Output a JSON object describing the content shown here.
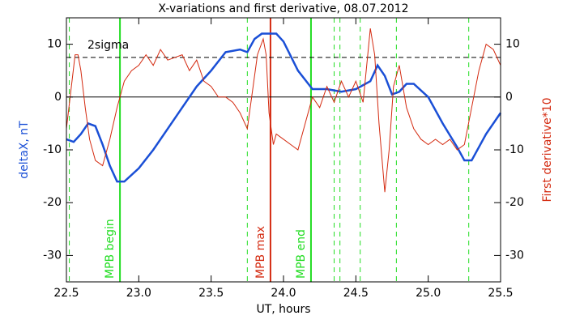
{
  "chart_data": {
    "type": "line",
    "title": "X-variations and first derivative, 08.07.2012",
    "xlabel": "UT, hours",
    "ylabel": "deltaX, nT",
    "y2label": "First derivative*10",
    "xlim": [
      22.5,
      25.5
    ],
    "ylim": [
      -35,
      15
    ],
    "y2lim": [
      -35,
      15
    ],
    "xticks": [
      {
        "value": 22.5,
        "label": "22.5"
      },
      {
        "value": 23,
        "label": "23.0"
      },
      {
        "value": 23.5,
        "label": "23.5"
      },
      {
        "value": 24,
        "label": "24.0"
      },
      {
        "value": 24.5,
        "label": "24.5"
      },
      {
        "value": 25,
        "label": "25.0"
      },
      {
        "value": 25.5,
        "label": "25.5"
      }
    ],
    "yticks": [
      -30,
      -20,
      -10,
      0,
      10
    ],
    "y2ticks": [
      -30,
      -20,
      -10,
      0,
      10
    ],
    "series": [
      {
        "name": "deltaX, nT",
        "color": "#1a4fd6",
        "x": [
          22.5,
          22.55,
          22.6,
          22.65,
          22.7,
          22.75,
          22.8,
          22.85,
          22.9,
          23.0,
          23.1,
          23.2,
          23.3,
          23.4,
          23.5,
          23.6,
          23.7,
          23.75,
          23.8,
          23.85,
          23.95,
          24.0,
          24.1,
          24.2,
          24.3,
          24.4,
          24.5,
          24.6,
          24.65,
          24.7,
          24.75,
          24.8,
          24.85,
          24.9,
          25.0,
          25.1,
          25.2,
          25.25,
          25.3,
          25.4,
          25.5
        ],
        "values": [
          -8,
          -8.5,
          -7,
          -5,
          -5.5,
          -9,
          -13,
          -16,
          -16,
          -13.5,
          -10,
          -6,
          -2,
          2,
          5,
          8.5,
          9,
          8.5,
          11,
          12,
          12,
          10.5,
          5,
          1.5,
          1.5,
          1,
          1.5,
          3,
          6,
          4,
          0.5,
          1,
          2.5,
          2.5,
          0,
          -5,
          -9.5,
          -12,
          -12,
          -7,
          -3
        ]
      },
      {
        "name": "First derivative*10",
        "color": "#d42a10",
        "axis": "y2",
        "x": [
          22.5,
          22.53,
          22.56,
          22.58,
          22.6,
          22.63,
          22.66,
          22.7,
          22.75,
          22.8,
          22.85,
          22.9,
          22.95,
          23.0,
          23.05,
          23.1,
          23.15,
          23.2,
          23.3,
          23.35,
          23.4,
          23.45,
          23.5,
          23.55,
          23.6,
          23.65,
          23.7,
          23.75,
          23.78,
          23.82,
          23.86,
          23.88,
          23.9,
          23.93,
          23.95,
          24.0,
          24.05,
          24.1,
          24.15,
          24.2,
          24.25,
          24.3,
          24.35,
          24.4,
          24.45,
          24.5,
          24.55,
          24.6,
          24.63,
          24.66,
          24.7,
          24.73,
          24.76,
          24.8,
          24.85,
          24.9,
          24.95,
          25.0,
          25.05,
          25.1,
          25.15,
          25.2,
          25.25,
          25.3,
          25.35,
          25.4,
          25.45,
          25.5
        ],
        "values": [
          -6,
          1,
          8,
          8,
          5,
          -2,
          -8,
          -12,
          -13,
          -8,
          -2,
          3,
          5,
          6,
          8,
          6,
          9,
          7,
          8,
          5,
          7,
          3,
          2,
          0,
          0,
          -1,
          -3,
          -6,
          0,
          8,
          11,
          8,
          -3,
          -9,
          -7,
          -8,
          -9,
          -10,
          -5,
          0,
          -2,
          2,
          -1,
          3,
          0,
          3,
          -1,
          13,
          8,
          -5,
          -18,
          -10,
          2,
          6,
          -2,
          -6,
          -8,
          -9,
          -8,
          -9,
          -8,
          -10,
          -9,
          -2,
          5,
          10,
          9,
          6
        ]
      }
    ],
    "reference_lines": [
      {
        "value": 7.5,
        "label": "2sigma",
        "style": "dashed"
      },
      {
        "value": 0,
        "style": "solid"
      }
    ],
    "markers": [
      {
        "x": 22.52,
        "color": "#22dd22",
        "style": "dashed"
      },
      {
        "x": 22.87,
        "color": "#22dd22",
        "style": "solid",
        "label": "MPB begin"
      },
      {
        "x": 23.75,
        "color": "#22dd22",
        "style": "dashed"
      },
      {
        "x": 23.91,
        "color": "#d42a10",
        "style": "solid",
        "label": "MPB max"
      },
      {
        "x": 24.19,
        "color": "#22dd22",
        "style": "solid",
        "label": "MPB end"
      },
      {
        "x": 24.35,
        "color": "#22dd22",
        "style": "dashed"
      },
      {
        "x": 24.39,
        "color": "#22dd22",
        "style": "dashed"
      },
      {
        "x": 24.53,
        "color": "#22dd22",
        "style": "dashed"
      },
      {
        "x": 24.78,
        "color": "#22dd22",
        "style": "dashed"
      },
      {
        "x": 25.28,
        "color": "#22dd22",
        "style": "dashed"
      }
    ]
  }
}
